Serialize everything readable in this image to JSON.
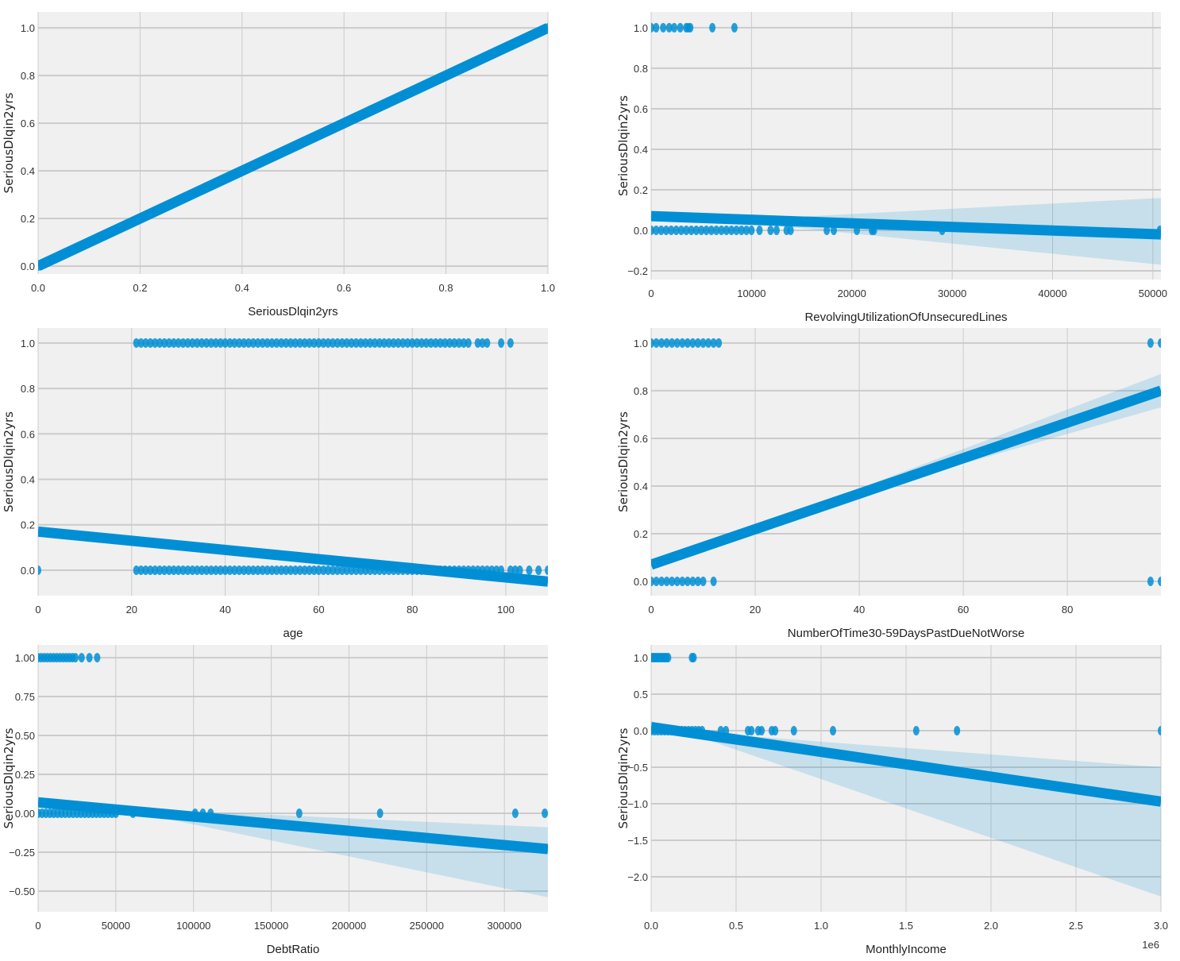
{
  "style": {
    "background": "#f0f0f0",
    "grid": "#cbcbcb",
    "series_color": "#008fd5",
    "ci_color": "#008fd5"
  },
  "chart_data": [
    {
      "type": "scatter",
      "subplot": "top-left",
      "xlabel": "SeriousDlqin2yrs",
      "ylabel": "SeriousDlqin2yrs",
      "xlim": [
        0,
        1
      ],
      "ylim": [
        -0.033,
        1.067
      ],
      "xticks": [
        0,
        0.2,
        0.4,
        0.6,
        0.8,
        1.0
      ],
      "xtick_labels": [
        "0.0",
        "0.2",
        "0.4",
        "0.6",
        "0.8",
        "1.0"
      ],
      "yticks": [
        0,
        0.2,
        0.4,
        0.6,
        0.8,
        1.0
      ],
      "ytick_labels": [
        "0.0",
        "0.2",
        "0.4",
        "0.6",
        "0.8",
        "1.0"
      ],
      "points_y1": [
        1
      ],
      "points_y0": [
        0
      ],
      "regression": {
        "x": [
          0,
          1
        ],
        "y": [
          0,
          1
        ]
      },
      "ci": {
        "x": [
          0,
          1
        ],
        "lower": [
          0,
          1
        ],
        "upper": [
          0,
          1
        ]
      },
      "offset_label": ""
    },
    {
      "type": "scatter",
      "subplot": "top-right",
      "xlabel": "RevolvingUtilizationOfUnsecuredLines",
      "ylabel": "SeriousDlqin2yrs",
      "xlim": [
        0,
        50800
      ],
      "ylim": [
        -0.243,
        1.078
      ],
      "xticks": [
        0,
        10000,
        20000,
        30000,
        40000,
        50000
      ],
      "xtick_labels": [
        "0",
        "10000",
        "20000",
        "30000",
        "40000",
        "50000"
      ],
      "yticks": [
        -0.2,
        0,
        0.2,
        0.4,
        0.6,
        0.8,
        1.0
      ],
      "ytick_labels": [
        "−0.2",
        "0.0",
        "0.2",
        "0.4",
        "0.6",
        "0.8",
        "1.0"
      ],
      "points_y1": [
        0,
        500,
        1200,
        1800,
        2300,
        2900,
        3500,
        3700,
        3900,
        6100,
        8300
      ],
      "points_y0": [
        0,
        500,
        1000,
        1500,
        2000,
        2500,
        3000,
        3500,
        4000,
        4500,
        5000,
        5500,
        6000,
        6500,
        7000,
        7500,
        8000,
        8500,
        9000,
        9500,
        10000,
        10800,
        11900,
        12500,
        13500,
        13900,
        17500,
        18200,
        20500,
        22000,
        22200,
        29000,
        50700
      ],
      "regression": {
        "x": [
          0,
          50800
        ],
        "y": [
          0.07,
          -0.02
        ]
      },
      "ci": {
        "x": [
          0,
          10000,
          50800
        ],
        "lower": [
          0.06,
          0.035,
          -0.17
        ],
        "upper": [
          0.08,
          0.055,
          0.16
        ]
      },
      "offset_label": ""
    },
    {
      "type": "scatter",
      "subplot": "middle-left",
      "xlabel": "age",
      "ylabel": "SeriousDlqin2yrs",
      "xlim": [
        0,
        109
      ],
      "ylim": [
        -0.112,
        1.066
      ],
      "xticks": [
        0,
        20,
        40,
        60,
        80,
        100
      ],
      "xtick_labels": [
        "0",
        "20",
        "40",
        "60",
        "80",
        "100"
      ],
      "yticks": [
        0,
        0.2,
        0.4,
        0.6,
        0.8,
        1.0
      ],
      "ytick_labels": [
        "0.0",
        "0.2",
        "0.4",
        "0.6",
        "0.8",
        "1.0"
      ],
      "points_y1": [
        21,
        22,
        23,
        24,
        25,
        26,
        27,
        28,
        29,
        30,
        31,
        32,
        33,
        34,
        35,
        36,
        37,
        38,
        39,
        40,
        41,
        42,
        43,
        44,
        45,
        46,
        47,
        48,
        49,
        50,
        51,
        52,
        53,
        54,
        55,
        56,
        57,
        58,
        59,
        60,
        61,
        62,
        63,
        64,
        65,
        66,
        67,
        68,
        69,
        70,
        71,
        72,
        73,
        74,
        75,
        76,
        77,
        78,
        79,
        80,
        81,
        82,
        83,
        84,
        85,
        86,
        87,
        88,
        89,
        90,
        91,
        92,
        94,
        95,
        96,
        99,
        101
      ],
      "points_y0": [
        0,
        21,
        22,
        23,
        24,
        25,
        26,
        27,
        28,
        29,
        30,
        31,
        32,
        33,
        34,
        35,
        36,
        37,
        38,
        39,
        40,
        41,
        42,
        43,
        44,
        45,
        46,
        47,
        48,
        49,
        50,
        51,
        52,
        53,
        54,
        55,
        56,
        57,
        58,
        59,
        60,
        61,
        62,
        63,
        64,
        65,
        66,
        67,
        68,
        69,
        70,
        71,
        72,
        73,
        74,
        75,
        76,
        77,
        78,
        79,
        80,
        81,
        82,
        83,
        84,
        85,
        86,
        87,
        88,
        89,
        90,
        91,
        92,
        93,
        94,
        95,
        96,
        97,
        98,
        99,
        101,
        102,
        103,
        105,
        107,
        109
      ],
      "regression": {
        "x": [
          0,
          109
        ],
        "y": [
          0.17,
          -0.05
        ]
      },
      "ci": {
        "x": [
          0,
          109
        ],
        "lower": [
          0.16,
          -0.06
        ],
        "upper": [
          0.18,
          -0.04
        ]
      },
      "offset_label": ""
    },
    {
      "type": "scatter",
      "subplot": "middle-right",
      "xlabel": "NumberOfTime30-59DaysPastDueNotWorse",
      "ylabel": "SeriousDlqin2yrs",
      "xlim": [
        0,
        98
      ],
      "ylim": [
        -0.06,
        1.063
      ],
      "xticks": [
        0,
        20,
        40,
        60,
        80
      ],
      "xtick_labels": [
        "0",
        "20",
        "40",
        "60",
        "80"
      ],
      "yticks": [
        0,
        0.2,
        0.4,
        0.6,
        0.8,
        1.0
      ],
      "ytick_labels": [
        "0.0",
        "0.2",
        "0.4",
        "0.6",
        "0.8",
        "1.0"
      ],
      "points_y1": [
        0,
        1,
        2,
        3,
        4,
        5,
        6,
        7,
        8,
        9,
        10,
        11,
        12,
        13,
        96,
        98
      ],
      "points_y0": [
        0,
        1,
        2,
        3,
        4,
        5,
        6,
        7,
        8,
        9,
        10,
        12,
        96,
        98
      ],
      "regression": {
        "x": [
          0,
          98
        ],
        "y": [
          0.07,
          0.8
        ]
      },
      "ci": {
        "x": [
          0,
          40,
          98
        ],
        "lower": [
          0.06,
          0.37,
          0.73
        ],
        "upper": [
          0.08,
          0.39,
          0.87
        ]
      },
      "offset_label": ""
    },
    {
      "type": "scatter",
      "subplot": "bottom-left",
      "xlabel": "DebtRatio",
      "ylabel": "SeriousDlqin2yrs",
      "xlim": [
        0,
        328000
      ],
      "ylim": [
        -0.633,
        1.082
      ],
      "xticks": [
        0,
        50000,
        100000,
        150000,
        200000,
        250000,
        300000
      ],
      "xtick_labels": [
        "0",
        "50000",
        "100000",
        "150000",
        "200000",
        "250000",
        "300000"
      ],
      "yticks": [
        -0.5,
        -0.25,
        0,
        0.25,
        0.5,
        0.75,
        1.0
      ],
      "ytick_labels": [
        "−0.50",
        "−0.25",
        "0.00",
        "0.25",
        "0.50",
        "0.75",
        "1.00"
      ],
      "points_y1": [
        0,
        2000,
        4000,
        6000,
        8000,
        10000,
        12000,
        14000,
        16000,
        18000,
        20000,
        22000,
        24000,
        28000,
        33000,
        38000
      ],
      "points_y0": [
        0,
        2500,
        5000,
        7500,
        10000,
        12500,
        15000,
        17500,
        20000,
        22500,
        25000,
        27500,
        30000,
        32500,
        35000,
        37500,
        40000,
        42500,
        45000,
        47500,
        50000,
        61000,
        101000,
        106000,
        111000,
        168000,
        220000,
        307000,
        326000
      ],
      "regression": {
        "x": [
          0,
          328000
        ],
        "y": [
          0.07,
          -0.23
        ]
      },
      "ci": {
        "x": [
          0,
          60000,
          328000
        ],
        "lower": [
          0.04,
          0.01,
          -0.54
        ],
        "upper": [
          0.1,
          0.03,
          -0.09
        ]
      },
      "offset_label": ""
    },
    {
      "type": "scatter",
      "subplot": "bottom-right",
      "xlabel": "MonthlyIncome",
      "ylabel": "SeriousDlqin2yrs",
      "xlim": [
        0,
        3000000
      ],
      "ylim": [
        -2.478,
        1.174
      ],
      "xticks": [
        0,
        500000,
        1000000,
        1500000,
        2000000,
        2500000,
        3000000
      ],
      "xtick_labels": [
        "0.0",
        "0.5",
        "1.0",
        "1.5",
        "2.0",
        "2.5",
        "3.0"
      ],
      "yticks": [
        -2.0,
        -1.5,
        -1.0,
        -0.5,
        0,
        0.5,
        1.0
      ],
      "ytick_labels": [
        "−2.0",
        "−1.5",
        "−1.0",
        "−0.5",
        "0.0",
        "0.5",
        "1.0"
      ],
      "points_y1": [
        0,
        10000,
        20000,
        30000,
        40000,
        50000,
        60000,
        70000,
        80000,
        90000,
        100000,
        240000,
        250000
      ],
      "points_y0": [
        0,
        20000,
        40000,
        60000,
        80000,
        100000,
        120000,
        140000,
        160000,
        180000,
        200000,
        220000,
        240000,
        260000,
        280000,
        300000,
        410000,
        440000,
        570000,
        590000,
        630000,
        650000,
        710000,
        730000,
        840000,
        1070000,
        1560000,
        1800000,
        3000000
      ],
      "regression": {
        "x": [
          0,
          3000000
        ],
        "y": [
          0.05,
          -0.97
        ]
      },
      "ci": {
        "x": [
          0,
          200000,
          3000000
        ],
        "lower": [
          -0.02,
          -0.02,
          -2.27
        ],
        "upper": [
          0.13,
          -0.01,
          -0.5
        ]
      },
      "offset_label": "1e6"
    }
  ]
}
